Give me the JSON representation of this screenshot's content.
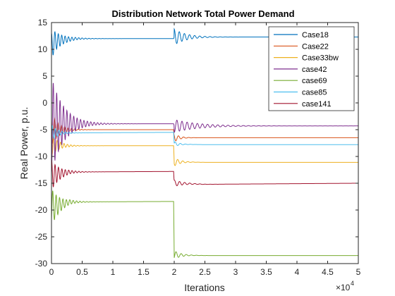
{
  "chart_data": {
    "type": "line",
    "title": "Distribution Network Total Power Demand",
    "xlabel": "Iterations",
    "ylabel": "Real Power, p.u.",
    "x_multiplier": "×10",
    "x_multiplier_exp": "4",
    "xlim": [
      0,
      5
    ],
    "ylim": [
      -30,
      15
    ],
    "xticks": [
      "0",
      "0.5",
      "1",
      "1.5",
      "2",
      "2.5",
      "3",
      "3.5",
      "4",
      "4.5",
      "5"
    ],
    "yticks": [
      "15",
      "10",
      "5",
      "0",
      "-5",
      "-10",
      "-15",
      "-20",
      "-25",
      "-30"
    ],
    "grid": false,
    "legend_position": "top-right",
    "series": [
      {
        "name": "Case18",
        "color": "#0072BD",
        "points": [
          [
            0,
            10.5
          ],
          [
            0.05,
            11.5
          ],
          [
            0.2,
            11.8
          ],
          [
            0.4,
            12.0
          ],
          [
            1.99,
            12.0
          ],
          [
            2.0,
            12.3
          ],
          [
            2.5,
            12.3
          ],
          [
            5,
            12.3
          ]
        ]
      },
      {
        "name": "Case22",
        "color": "#D95319",
        "points": [
          [
            0,
            -5.0
          ],
          [
            0.3,
            -5.0
          ],
          [
            1.99,
            -5.0
          ],
          [
            2.0,
            -6.5
          ],
          [
            2.5,
            -6.5
          ],
          [
            5,
            -6.5
          ]
        ]
      },
      {
        "name": "Case33bw",
        "color": "#EDB120",
        "points": [
          [
            0,
            -7.9
          ],
          [
            0.3,
            -8.0
          ],
          [
            1.99,
            -8.0
          ],
          [
            2.0,
            -11.0
          ],
          [
            2.5,
            -11.1
          ],
          [
            5,
            -11.1
          ]
        ]
      },
      {
        "name": "case42",
        "color": "#7E2F8E",
        "points": [
          [
            0,
            -4.0
          ],
          [
            0.6,
            -3.9
          ],
          [
            1.99,
            -3.9
          ],
          [
            2.0,
            -4.3
          ],
          [
            3.0,
            -4.3
          ],
          [
            5,
            -4.3
          ]
        ]
      },
      {
        "name": "case69",
        "color": "#77AC30",
        "points": [
          [
            0,
            -19.5
          ],
          [
            0.3,
            -18.5
          ],
          [
            1.99,
            -18.4
          ],
          [
            2.0,
            -28.4
          ],
          [
            2.5,
            -28.5
          ],
          [
            5,
            -28.5
          ]
        ]
      },
      {
        "name": "case85",
        "color": "#4DBEEE",
        "points": [
          [
            0,
            -5.6
          ],
          [
            0.3,
            -5.6
          ],
          [
            1.99,
            -5.5
          ],
          [
            2.0,
            -7.7
          ],
          [
            2.5,
            -7.8
          ],
          [
            5,
            -7.8
          ]
        ]
      },
      {
        "name": "case141",
        "color": "#A2142F",
        "points": [
          [
            0,
            -13.5
          ],
          [
            0.3,
            -12.9
          ],
          [
            1.99,
            -12.8
          ],
          [
            2.0,
            -15.0
          ],
          [
            2.5,
            -15.2
          ],
          [
            5,
            -15.0
          ]
        ]
      }
    ]
  }
}
